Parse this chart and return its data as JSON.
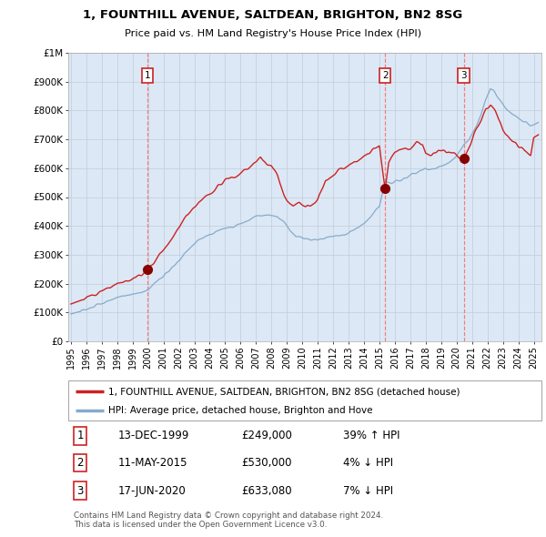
{
  "title_line1": "1, FOUNTHILL AVENUE, SALTDEAN, BRIGHTON, BN2 8SG",
  "title_line2": "Price paid vs. HM Land Registry's House Price Index (HPI)",
  "ylim": [
    0,
    1000000
  ],
  "yticks": [
    0,
    100000,
    200000,
    300000,
    400000,
    500000,
    600000,
    700000,
    800000,
    900000,
    1000000
  ],
  "ytick_labels": [
    "£0",
    "£100K",
    "£200K",
    "£300K",
    "£400K",
    "£500K",
    "£600K",
    "£700K",
    "£800K",
    "£900K",
    "£1M"
  ],
  "xlim_start": 1994.83,
  "xlim_end": 2025.5,
  "xticks": [
    1995,
    1996,
    1997,
    1998,
    1999,
    2000,
    2001,
    2002,
    2003,
    2004,
    2005,
    2006,
    2007,
    2008,
    2009,
    2010,
    2011,
    2012,
    2013,
    2014,
    2015,
    2016,
    2017,
    2018,
    2019,
    2020,
    2021,
    2022,
    2023,
    2024,
    2025
  ],
  "sale1_x": 1999.95,
  "sale1_y": 249000,
  "sale1_label": "1",
  "sale1_date": "13-DEC-1999",
  "sale1_price": "£249,000",
  "sale1_pct": "39% ↑ HPI",
  "sale2_x": 2015.37,
  "sale2_y": 530000,
  "sale2_label": "2",
  "sale2_date": "11-MAY-2015",
  "sale2_price": "£530,000",
  "sale2_pct": "4% ↓ HPI",
  "sale3_x": 2020.46,
  "sale3_y": 633080,
  "sale3_label": "3",
  "sale3_date": "17-JUN-2020",
  "sale3_price": "£633,080",
  "sale3_pct": "7% ↓ HPI",
  "red_color": "#cc2222",
  "blue_color": "#88aacc",
  "dot_color": "#880000",
  "dash_color": "#ff6666",
  "bg_color": "#dce8f5",
  "grid_color": "#c0ccd8",
  "legend_line1": "1, FOUNTHILL AVENUE, SALTDEAN, BRIGHTON, BN2 8SG (detached house)",
  "legend_line2": "HPI: Average price, detached house, Brighton and Hove",
  "footer1": "Contains HM Land Registry data © Crown copyright and database right 2024.",
  "footer2": "This data is licensed under the Open Government Licence v3.0.",
  "hpi_t": [
    1995.0,
    1995.5,
    1996.0,
    1996.5,
    1997.0,
    1997.5,
    1998.0,
    1998.5,
    1999.0,
    1999.5,
    2000.0,
    2000.5,
    2001.0,
    2001.5,
    2002.0,
    2002.5,
    2003.0,
    2003.5,
    2004.0,
    2004.5,
    2005.0,
    2005.5,
    2006.0,
    2006.5,
    2007.0,
    2007.5,
    2008.0,
    2008.4,
    2008.8,
    2009.2,
    2009.6,
    2010.0,
    2010.5,
    2011.0,
    2011.5,
    2012.0,
    2012.5,
    2013.0,
    2013.5,
    2014.0,
    2014.5,
    2015.0,
    2015.37,
    2015.8,
    2016.3,
    2016.8,
    2017.2,
    2017.6,
    2018.0,
    2018.5,
    2019.0,
    2019.5,
    2020.0,
    2020.46,
    2020.8,
    2021.0,
    2021.3,
    2021.6,
    2021.9,
    2022.2,
    2022.4,
    2022.6,
    2022.8,
    2023.0,
    2023.3,
    2023.6,
    2023.9,
    2024.2,
    2024.5,
    2024.8,
    2025.0,
    2025.3
  ],
  "hpi_v": [
    95000,
    102000,
    110000,
    120000,
    132000,
    144000,
    152000,
    158000,
    163000,
    168000,
    180000,
    205000,
    228000,
    252000,
    278000,
    312000,
    340000,
    358000,
    370000,
    382000,
    392000,
    398000,
    408000,
    420000,
    432000,
    438000,
    438000,
    432000,
    415000,
    385000,
    362000,
    358000,
    350000,
    352000,
    358000,
    362000,
    368000,
    375000,
    390000,
    408000,
    438000,
    468000,
    553000,
    548000,
    558000,
    572000,
    582000,
    590000,
    598000,
    598000,
    608000,
    622000,
    640000,
    682000,
    700000,
    720000,
    748000,
    790000,
    840000,
    875000,
    868000,
    852000,
    838000,
    820000,
    802000,
    790000,
    778000,
    765000,
    758000,
    748000,
    752000,
    760000
  ],
  "red_t": [
    1995.0,
    1995.5,
    1996.0,
    1996.5,
    1997.0,
    1997.5,
    1998.0,
    1998.5,
    1999.0,
    1999.5,
    1999.95,
    2000.2,
    2000.6,
    2001.0,
    2001.5,
    2002.0,
    2002.5,
    2003.0,
    2003.5,
    2004.0,
    2004.5,
    2005.0,
    2005.5,
    2006.0,
    2006.5,
    2007.0,
    2007.3,
    2007.7,
    2008.0,
    2008.4,
    2008.8,
    2009.0,
    2009.4,
    2009.8,
    2010.2,
    2010.5,
    2011.0,
    2011.5,
    2012.0,
    2012.5,
    2013.0,
    2013.5,
    2014.0,
    2014.5,
    2015.0,
    2015.37,
    2015.6,
    2016.0,
    2016.5,
    2017.0,
    2017.4,
    2017.8,
    2018.0,
    2018.4,
    2018.8,
    2019.2,
    2019.6,
    2020.0,
    2020.46,
    2020.8,
    2021.0,
    2021.3,
    2021.6,
    2021.9,
    2022.2,
    2022.5,
    2022.8,
    2023.0,
    2023.3,
    2023.6,
    2024.0,
    2024.4,
    2024.8,
    2025.0,
    2025.3
  ],
  "red_v": [
    128000,
    138000,
    148000,
    162000,
    175000,
    188000,
    198000,
    208000,
    218000,
    232000,
    249000,
    262000,
    290000,
    318000,
    355000,
    395000,
    440000,
    468000,
    495000,
    510000,
    535000,
    558000,
    568000,
    582000,
    600000,
    625000,
    640000,
    618000,
    608000,
    572000,
    510000,
    488000,
    470000,
    482000,
    468000,
    475000,
    490000,
    560000,
    580000,
    598000,
    605000,
    625000,
    645000,
    660000,
    672000,
    530000,
    620000,
    655000,
    668000,
    672000,
    685000,
    678000,
    650000,
    645000,
    658000,
    662000,
    652000,
    642000,
    633080,
    672000,
    698000,
    738000,
    768000,
    808000,
    818000,
    798000,
    762000,
    730000,
    715000,
    695000,
    672000,
    660000,
    648000,
    710000,
    720000
  ]
}
